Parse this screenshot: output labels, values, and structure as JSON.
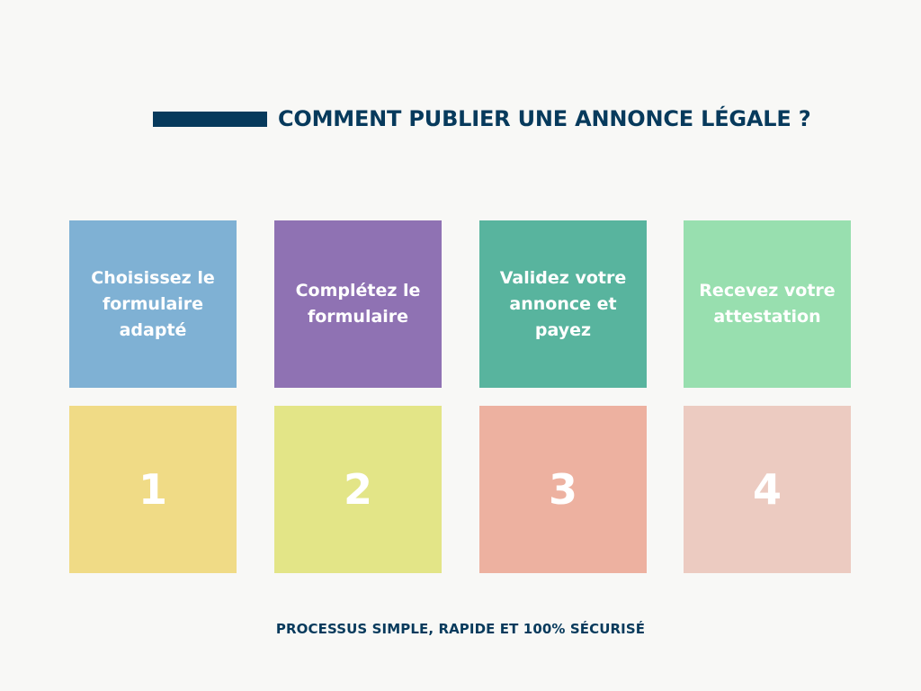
{
  "title": "COMMENT PUBLIER UNE ANNONCE LÉGALE ?",
  "footer": "PROCESSUS SIMPLE, RAPIDE ET 100% SÉCURISÉ",
  "colors": {
    "navy": "#073a5c",
    "background": "#f8f8f6"
  },
  "steps": [
    {
      "label": "Choisissez le formulaire adapté",
      "number": "1",
      "label_color": "#7fb1d4",
      "number_color": "#f0db86"
    },
    {
      "label": "Complétez le formulaire",
      "number": "2",
      "label_color": "#8f72b3",
      "number_color": "#e3e587"
    },
    {
      "label": "Validez votre annonce et payez",
      "number": "3",
      "label_color": "#58b49e",
      "number_color": "#edb1a0"
    },
    {
      "label": "Recevez votre attestation",
      "number": "4",
      "label_color": "#98dfaf",
      "number_color": "#eccbc1"
    }
  ]
}
